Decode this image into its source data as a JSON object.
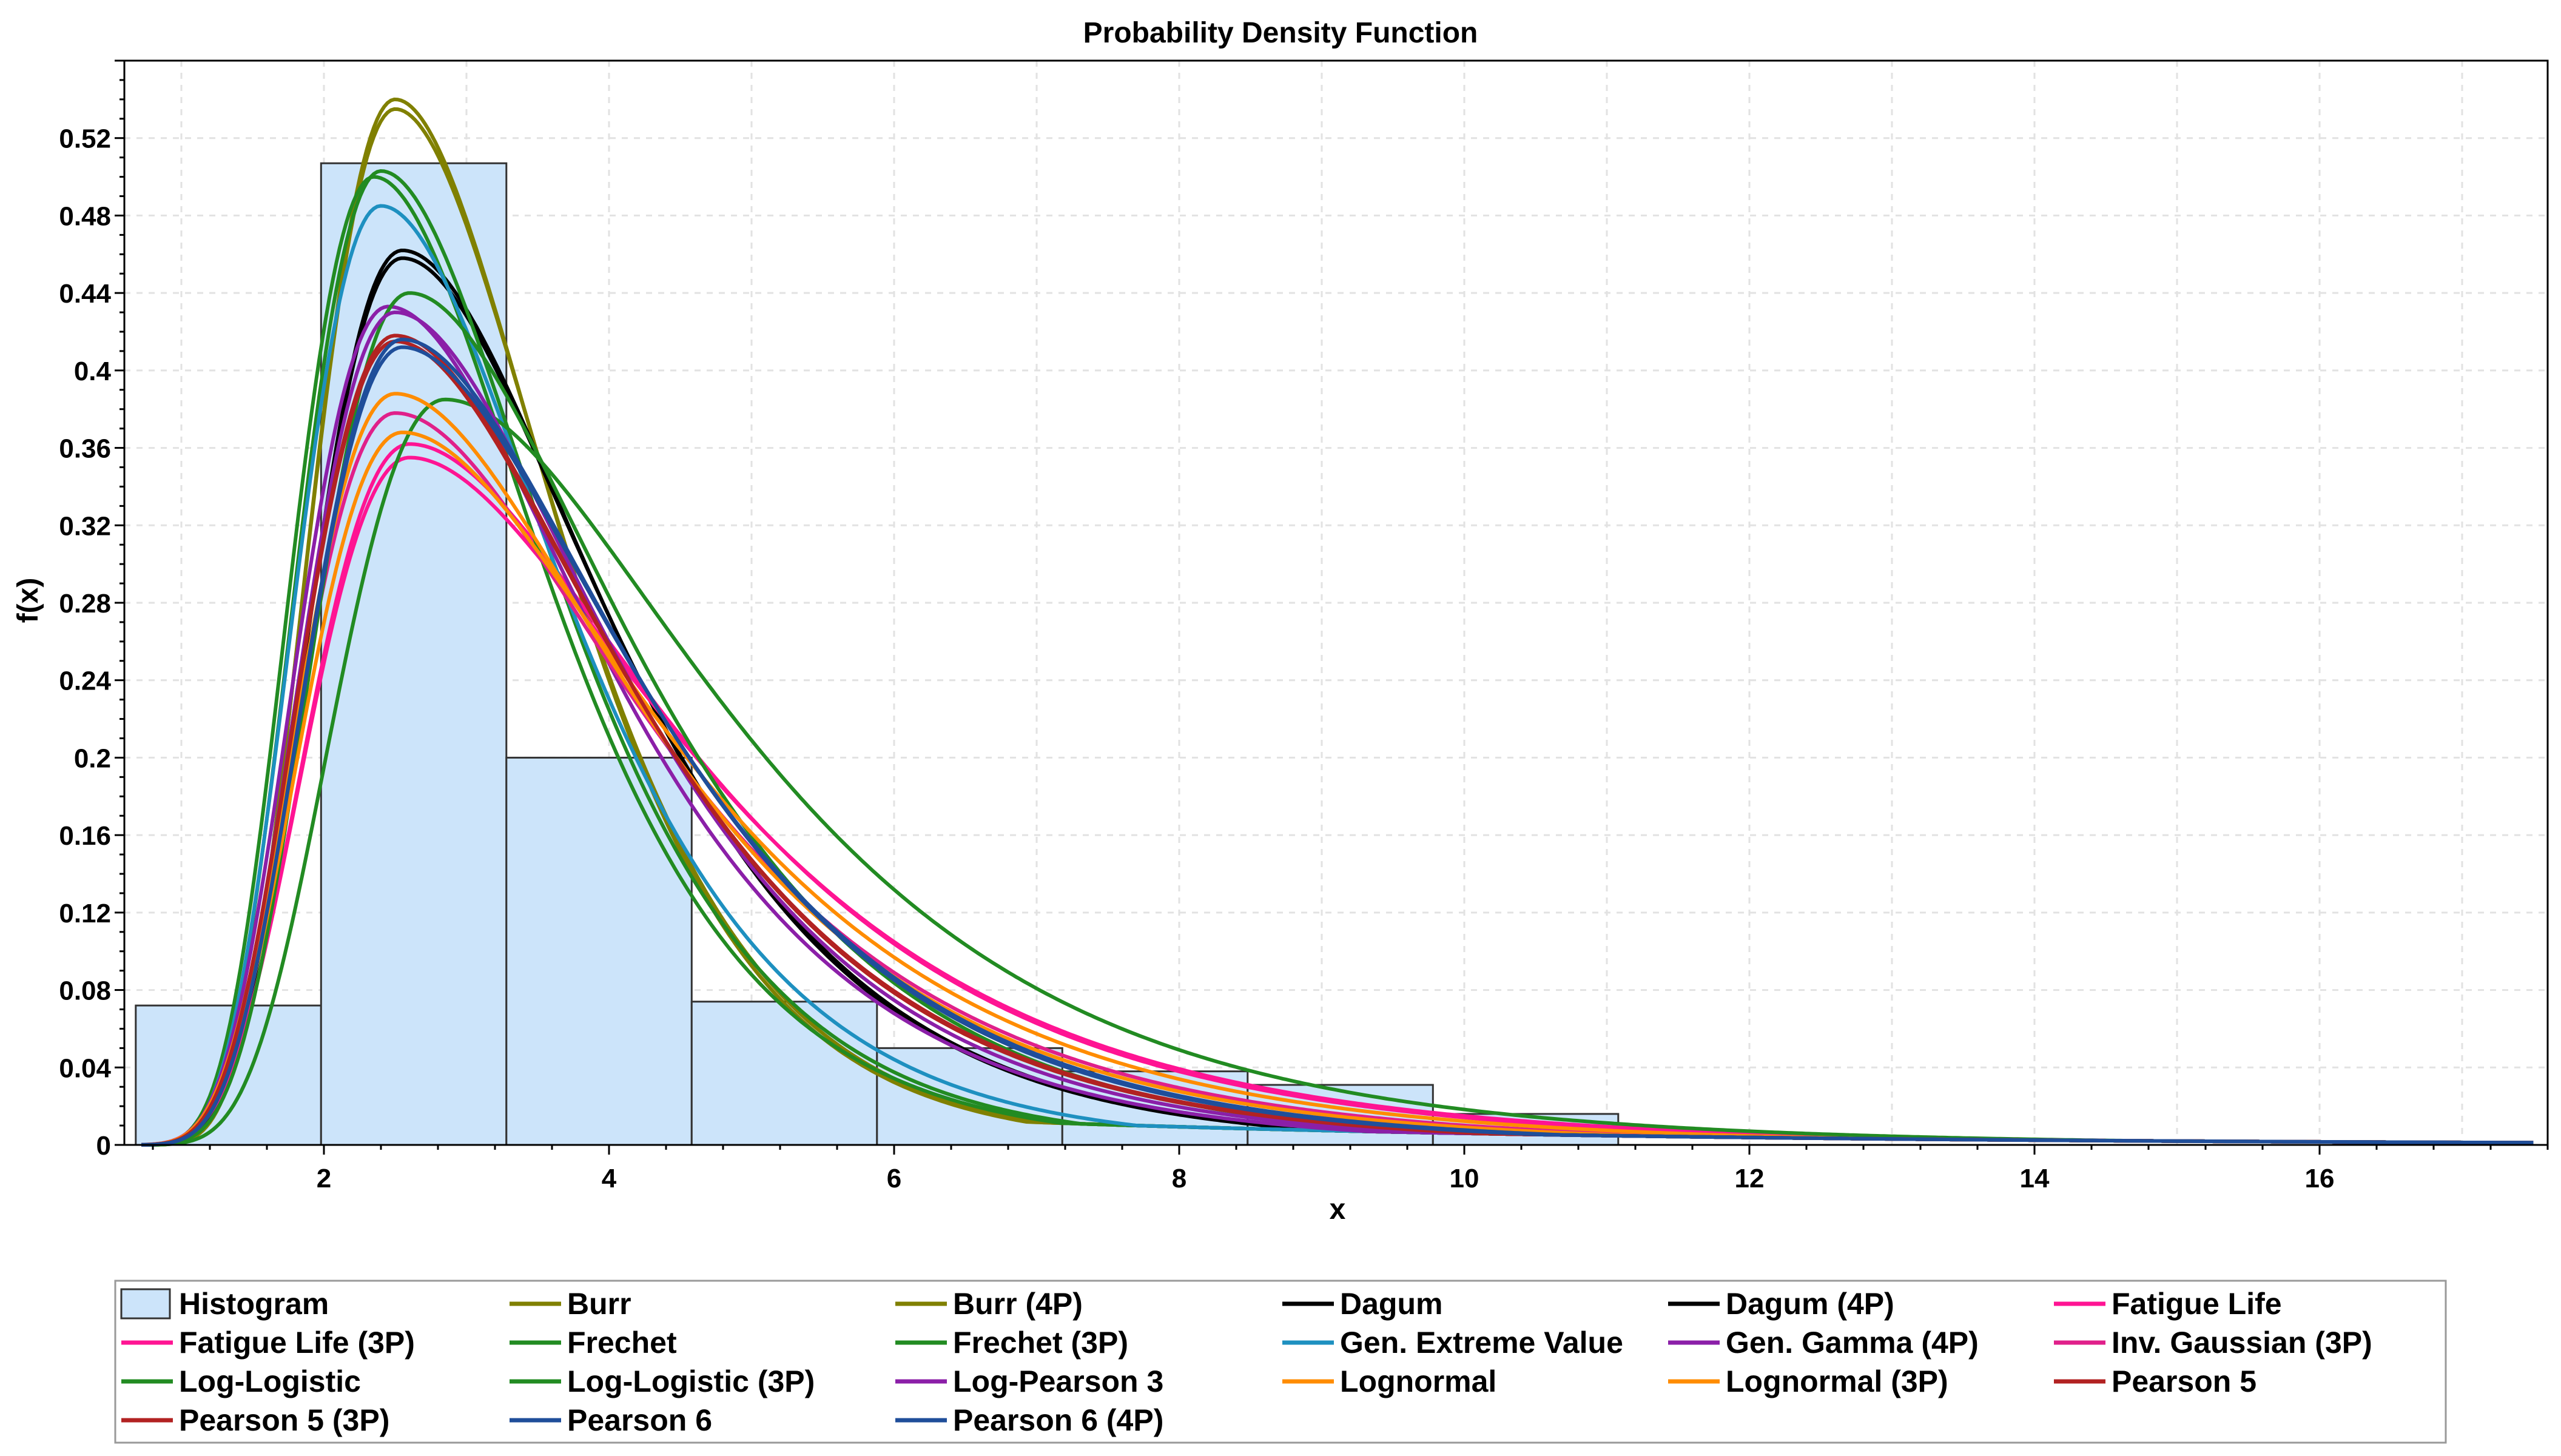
{
  "chart_data": {
    "type": "line",
    "title": "Probability Density Function",
    "xlabel": "x",
    "ylabel": "f(x)",
    "xlim": [
      0.6,
      17.6
    ],
    "ylim": [
      0,
      0.56
    ],
    "x_ticks": [
      "2",
      "4",
      "6",
      "8",
      "10",
      "12",
      "14",
      "16"
    ],
    "y_ticks": [
      "0",
      "0.04",
      "0.08",
      "0.12",
      "0.16",
      "0.2",
      "0.24",
      "0.28",
      "0.32",
      "0.36",
      "0.4",
      "0.44",
      "0.48",
      "0.52"
    ],
    "grid": true,
    "legend_position": "bottom",
    "histogram": {
      "name": "Histogram",
      "color": "#cce4fa",
      "edges": [
        0.68,
        1.98,
        3.28,
        4.58,
        5.88,
        7.18,
        8.48,
        9.78,
        11.08
      ],
      "values": [
        0.072,
        0.507,
        0.2,
        0.074,
        0.05,
        0.038,
        0.031,
        0.016
      ]
    },
    "series": [
      {
        "name": "Burr",
        "color": "#808000",
        "mode": 2.5,
        "peak": 0.535
      },
      {
        "name": "Burr (4P)",
        "color": "#808000",
        "mode": 2.5,
        "peak": 0.54
      },
      {
        "name": "Dagum",
        "color": "#000000",
        "mode": 2.55,
        "peak": 0.462
      },
      {
        "name": "Dagum (4P)",
        "color": "#000000",
        "mode": 2.55,
        "peak": 0.458
      },
      {
        "name": "Fatigue Life",
        "color": "#ff1493",
        "mode": 2.6,
        "peak": 0.362
      },
      {
        "name": "Fatigue Life (3P)",
        "color": "#ff1493",
        "mode": 2.6,
        "peak": 0.355
      },
      {
        "name": "Frechet",
        "color": "#228b22",
        "mode": 2.35,
        "peak": 0.5
      },
      {
        "name": "Frechet (3P)",
        "color": "#228b22",
        "mode": 2.4,
        "peak": 0.503
      },
      {
        "name": "Gen. Extreme Value",
        "color": "#1e90c0",
        "mode": 2.4,
        "peak": 0.485
      },
      {
        "name": "Gen. Gamma (4P)",
        "color": "#8b1fa8",
        "mode": 2.45,
        "peak": 0.433
      },
      {
        "name": "Inv. Gaussian (3P)",
        "color": "#e0208a",
        "mode": 2.5,
        "peak": 0.378
      },
      {
        "name": "Log-Logistic",
        "color": "#228b22",
        "mode": 2.6,
        "peak": 0.44
      },
      {
        "name": "Log-Logistic (3P)",
        "color": "#228b22",
        "mode": 2.85,
        "peak": 0.385
      },
      {
        "name": "Log-Pearson 3",
        "color": "#8b1fa8",
        "mode": 2.5,
        "peak": 0.43
      },
      {
        "name": "Lognormal",
        "color": "#ff8c00",
        "mode": 2.5,
        "peak": 0.388
      },
      {
        "name": "Lognormal (3P)",
        "color": "#ff8c00",
        "mode": 2.55,
        "peak": 0.368
      },
      {
        "name": "Pearson 5",
        "color": "#b22222",
        "mode": 2.5,
        "peak": 0.418
      },
      {
        "name": "Pearson 5 (3P)",
        "color": "#b22222",
        "mode": 2.5,
        "peak": 0.415
      },
      {
        "name": "Pearson 6",
        "color": "#1f4e9a",
        "mode": 2.55,
        "peak": 0.416
      },
      {
        "name": "Pearson 6 (4P)",
        "color": "#1f4e9a",
        "mode": 2.55,
        "peak": 0.412
      }
    ]
  }
}
